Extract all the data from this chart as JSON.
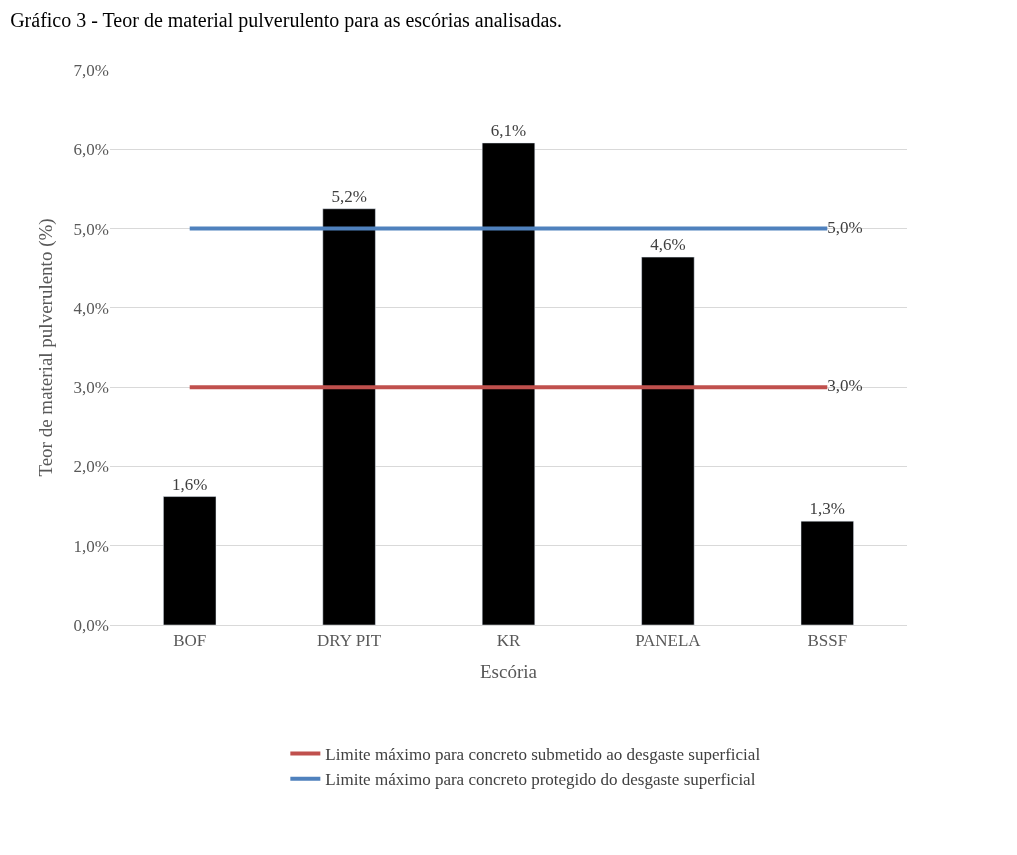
{
  "chart_data": {
    "type": "bar",
    "title": "Gráfico 3 - Teor de material pulverulento para as escórias analisadas.",
    "xlabel": "Escória",
    "ylabel": "Teor de material pulverulento (%)",
    "categories": [
      "BOF",
      "DRY PIT",
      "KR",
      "PANELA",
      "BSSF"
    ],
    "series": [
      {
        "color": "#000000",
        "values": [
          1.62,
          5.25,
          6.08,
          4.64,
          1.31
        ],
        "value_labels": [
          "1,6%",
          "5,2%",
          "6,1%",
          "4,6%",
          "1,3%"
        ]
      },
      {
        "type": "line",
        "name": "Limite máximo para concreto submetido ao desgaste superficial",
        "color": "#c0504d",
        "values": [
          3.0,
          3.0,
          3.0,
          3.0,
          3.0
        ],
        "value_labels": [
          null,
          null,
          null,
          null,
          "3,0%"
        ]
      },
      {
        "type": "line",
        "name": "Limite máximo para concreto protegido do desgaste superficial",
        "color": "#4f81bd",
        "values": [
          5.0,
          5.0,
          5.0,
          5.0,
          5.0
        ],
        "value_labels": [
          null,
          null,
          null,
          null,
          "5,0%"
        ]
      }
    ],
    "ylim": [
      0,
      7
    ],
    "yticks": [
      {
        "value": 0,
        "label": "0,0%"
      },
      {
        "value": 1,
        "label": "1,0%"
      },
      {
        "value": 2,
        "label": "2,0%"
      },
      {
        "value": 3,
        "label": "3,0%"
      },
      {
        "value": 4,
        "label": "4,0%"
      },
      {
        "value": 5,
        "label": "5,0%"
      },
      {
        "value": 6,
        "label": "6,0%"
      },
      {
        "value": 7,
        "label": "7,0%"
      }
    ],
    "grid": "y",
    "legend": "bottom",
    "marker": "none",
    "line_style": "solid"
  }
}
